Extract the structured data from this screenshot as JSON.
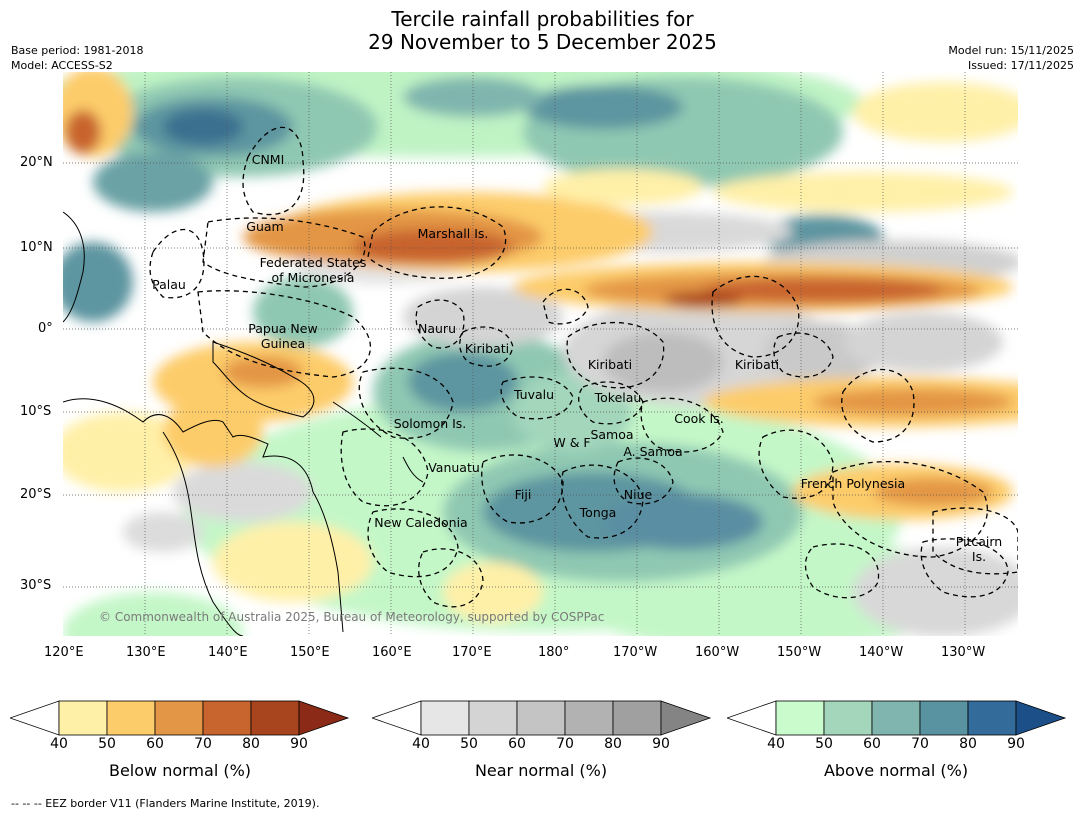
{
  "title_line1": "Tercile rainfall probabilities for",
  "title_line2": "29 November to 5 December 2025",
  "meta": {
    "base_period": "Base period: 1981-2018",
    "model": "Model: ACCESS-S2",
    "model_run": "Model run: 15/11/2025",
    "issued": "Issued: 17/11/2025"
  },
  "credit": "© Commonwealth of Australia 2025, Bureau of Meteorology, supported by COSPPac",
  "footnote": "--  --  -- EEZ border V11 (Flanders Marine Institute, 2019).",
  "axes": {
    "lon_ticks": [
      "120°E",
      "130°E",
      "140°E",
      "150°E",
      "160°E",
      "170°E",
      "180°",
      "170°W",
      "160°W",
      "150°W",
      "140°W",
      "130°W"
    ],
    "lat_ticks": [
      "20°N",
      "10°N",
      "0°",
      "10°S",
      "20°S",
      "30°S"
    ]
  },
  "places": [
    "CNMI",
    "Guam",
    "Marshall Is.",
    "Federated States",
    "of Micronesia",
    "Palau",
    "Papua New",
    "Guinea",
    "Nauru",
    "Kiribati",
    "Kiribati",
    "Kiribati",
    "Tuvalu",
    "Tokelau",
    "Solomon Is.",
    "Cook Is.",
    "Samoa",
    "W & F",
    "A. Samoa",
    "Vanuatu",
    "Fiji",
    "Niue",
    "French Polynesia",
    "Tonga",
    "New Caledonia",
    "Pitcairn",
    "Is."
  ],
  "colorbars": [
    {
      "title": "Below normal (%)",
      "ticks": [
        "40",
        "50",
        "60",
        "70",
        "80",
        "90"
      ],
      "colors": [
        "#ffffff",
        "#fff0a8",
        "#fdcc6a",
        "#e39645",
        "#c8642d",
        "#a8451f",
        "#8b2a17"
      ]
    },
    {
      "title": "Near normal (%)",
      "ticks": [
        "40",
        "50",
        "60",
        "70",
        "80",
        "90"
      ],
      "colors": [
        "#ffffff",
        "#e6e6e6",
        "#d4d4d4",
        "#c4c4c4",
        "#b2b2b2",
        "#a0a0a0",
        "#848484"
      ]
    },
    {
      "title": "Above normal (%)",
      "ticks": [
        "40",
        "50",
        "60",
        "70",
        "80",
        "90"
      ],
      "colors": [
        "#ffffff",
        "#c9fbcd",
        "#a3d6bb",
        "#7fb5ae",
        "#5993a2",
        "#336b9a",
        "#1c4f87"
      ]
    }
  ]
}
